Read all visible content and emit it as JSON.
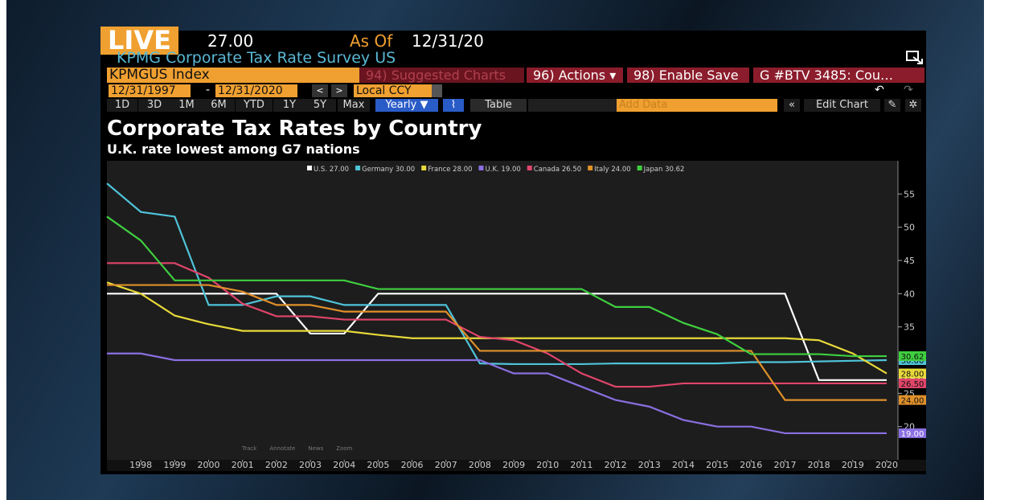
{
  "ui": {
    "live": "LIVE",
    "last_price": "27.00",
    "as_of_label": "As Of",
    "as_of_date": "12/31/20",
    "security_title": "KPMG Corporate Tax Rate Survey US",
    "ticker": "KPMGUS Index",
    "suggested": "94) Suggested Charts",
    "actions": "96) Actions ▾",
    "enable_save": "98) Enable Save",
    "tab": "G #BTV 3485: Cou…",
    "start_date": "12/31/1997",
    "date_sep": "-",
    "end_date": "12/31/2020",
    "currency": "Local CCY",
    "periods": [
      "1D",
      "3D",
      "1M",
      "6M",
      "YTD",
      "1Y",
      "5Y",
      "Max"
    ],
    "frequency": "Yearly ▼",
    "table": "Table",
    "add_data": "Add Data",
    "edit_chart": "Edit Chart",
    "tools": [
      "Track",
      "Annotate",
      "News",
      "Zoom"
    ]
  },
  "chart_data": {
    "type": "line",
    "title": "Corporate Tax Rates by Country",
    "subtitle": "U.K. rate lowest among G7 nations",
    "x": [
      1997,
      1998,
      1999,
      2000,
      2001,
      2002,
      2003,
      2004,
      2005,
      2006,
      2007,
      2008,
      2009,
      2010,
      2011,
      2012,
      2013,
      2014,
      2015,
      2016,
      2017,
      2018,
      2019,
      2020
    ],
    "xlim": [
      1997,
      2020
    ],
    "xticks": [
      1998,
      1999,
      2000,
      2001,
      2002,
      2003,
      2004,
      2005,
      2006,
      2007,
      2008,
      2009,
      2010,
      2011,
      2012,
      2013,
      2014,
      2015,
      2016,
      2017,
      2018,
      2019,
      2020
    ],
    "ylim": [
      15,
      60
    ],
    "yticks": [
      20,
      25,
      30,
      35,
      40,
      45,
      50,
      55
    ],
    "grid": false,
    "legend": "top",
    "series": [
      {
        "name": "U.S.",
        "color": "#ffffff",
        "values": [
          40,
          40,
          40,
          40,
          40,
          40,
          34,
          34,
          40,
          40,
          40,
          40,
          40,
          40,
          40,
          40,
          40,
          40,
          40,
          40,
          40,
          27,
          27,
          27
        ],
        "value_labels": [
          null,
          null,
          null,
          null,
          null,
          null,
          null,
          null,
          null,
          null,
          null,
          null,
          null,
          null,
          null,
          null,
          null,
          null,
          null,
          null,
          null,
          null,
          null,
          "27.00"
        ]
      },
      {
        "name": "Germany",
        "color": "#4fc3d9",
        "values": [
          56.6,
          52.3,
          51.6,
          38.3,
          38.3,
          39.6,
          39.6,
          38.3,
          38.3,
          38.3,
          38.3,
          29.5,
          29.4,
          29.4,
          29.4,
          29.5,
          29.5,
          29.5,
          29.5,
          29.7,
          29.7,
          29.8,
          29.9,
          30
        ],
        "value_labels": [
          null,
          null,
          null,
          null,
          null,
          null,
          null,
          null,
          null,
          null,
          null,
          null,
          null,
          null,
          null,
          null,
          null,
          null,
          null,
          null,
          null,
          null,
          null,
          "30.00"
        ]
      },
      {
        "name": "France",
        "color": "#e8d93a",
        "values": [
          41.7,
          40,
          36.7,
          35.4,
          34.4,
          34.4,
          34.4,
          34.4,
          33.8,
          33.3,
          33.3,
          33.3,
          33.3,
          33.3,
          33.3,
          33.3,
          33.3,
          33.3,
          33.3,
          33.3,
          33.3,
          33,
          31,
          28
        ],
        "value_labels": [
          null,
          null,
          null,
          null,
          null,
          null,
          null,
          null,
          null,
          null,
          null,
          null,
          null,
          null,
          null,
          null,
          null,
          null,
          null,
          null,
          null,
          null,
          null,
          "28.00"
        ]
      },
      {
        "name": "U.K.",
        "color": "#8a6fe0",
        "values": [
          31,
          31,
          30,
          30,
          30,
          30,
          30,
          30,
          30,
          30,
          30,
          30,
          28,
          28,
          26,
          24,
          23,
          21,
          20,
          20,
          19,
          19,
          19,
          19
        ],
        "value_labels": [
          null,
          null,
          null,
          null,
          null,
          null,
          null,
          null,
          null,
          null,
          null,
          null,
          null,
          null,
          null,
          null,
          null,
          null,
          null,
          null,
          null,
          null,
          null,
          "19.00"
        ]
      },
      {
        "name": "Canada",
        "color": "#e0456a",
        "values": [
          44.6,
          44.6,
          44.6,
          42.4,
          38.5,
          36.6,
          36.6,
          36.1,
          36.1,
          36.1,
          36.1,
          33.5,
          33,
          31,
          28,
          26,
          26,
          26.5,
          26.5,
          26.5,
          26.5,
          26.5,
          26.5,
          26.5
        ],
        "value_labels": [
          null,
          null,
          null,
          null,
          null,
          null,
          null,
          null,
          null,
          null,
          null,
          null,
          null,
          null,
          null,
          null,
          null,
          null,
          null,
          null,
          null,
          null,
          null,
          "26.50"
        ]
      },
      {
        "name": "Italy",
        "color": "#e0902a",
        "values": [
          41.3,
          41.3,
          41.3,
          41.3,
          40.3,
          38.3,
          38.3,
          37.3,
          37.3,
          37.3,
          37.3,
          31.4,
          31.4,
          31.4,
          31.4,
          31.4,
          31.4,
          31.4,
          31.4,
          31.4,
          24,
          24,
          24,
          24
        ],
        "value_labels": [
          null,
          null,
          null,
          null,
          null,
          null,
          null,
          null,
          null,
          null,
          null,
          null,
          null,
          null,
          null,
          null,
          null,
          null,
          null,
          null,
          null,
          null,
          null,
          "24.00"
        ]
      },
      {
        "name": "Japan",
        "color": "#3fcf3f",
        "values": [
          51.6,
          48,
          42,
          42,
          42,
          42,
          42,
          42,
          40.7,
          40.7,
          40.7,
          40.7,
          40.7,
          40.7,
          40.7,
          38,
          38,
          35.6,
          33.9,
          30.9,
          30.9,
          30.9,
          30.6,
          30.6
        ],
        "value_labels": [
          null,
          null,
          null,
          null,
          null,
          null,
          null,
          null,
          null,
          null,
          null,
          null,
          null,
          null,
          null,
          null,
          null,
          null,
          null,
          null,
          null,
          null,
          null,
          "30.62"
        ]
      }
    ]
  }
}
